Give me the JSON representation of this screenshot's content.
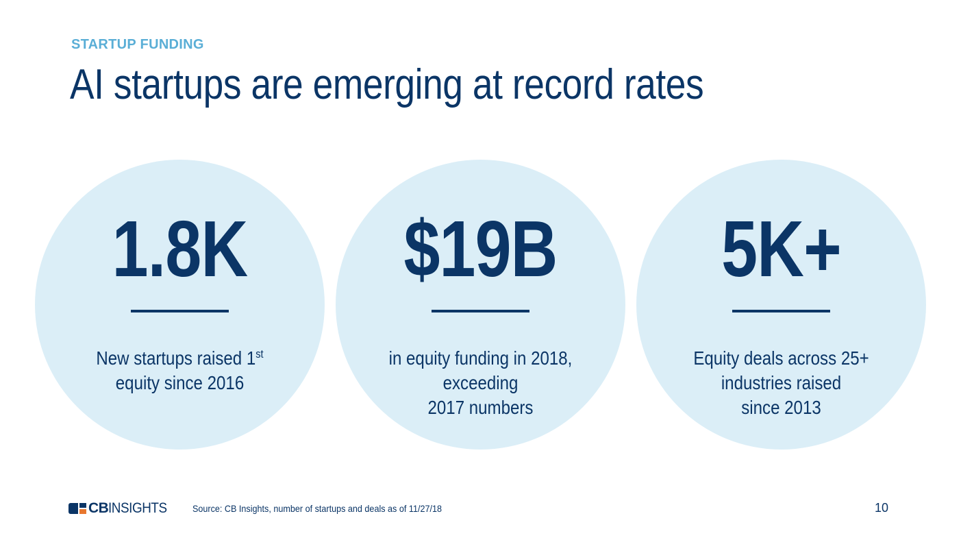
{
  "header": {
    "eyebrow": "STARTUP FUNDING",
    "title": "AI startups are emerging at record rates"
  },
  "stats": [
    {
      "value": "1.8K",
      "desc_before": "New startups raised 1",
      "desc_sup": "st",
      "desc_after": " equity since 2016"
    },
    {
      "value": "$19B",
      "desc_line1": "in equity funding in 2018,",
      "desc_line2": "exceeding",
      "desc_line3": "2017 numbers"
    },
    {
      "value": "5K+",
      "desc_line1": "Equity deals across 25+",
      "desc_line2": "industries raised",
      "desc_line3": "since 2013"
    }
  ],
  "footer": {
    "logo_bold": "CB",
    "logo_regular": "INSIGHTS",
    "source": "Source: CB Insights, number of startups and deals as of 11/27/18",
    "page_number": "10"
  },
  "colors": {
    "navy": "#0b3566",
    "accent_blue": "#5aaed6",
    "circle_fill": "#dbeef7",
    "logo_orange": "#e8772e"
  }
}
